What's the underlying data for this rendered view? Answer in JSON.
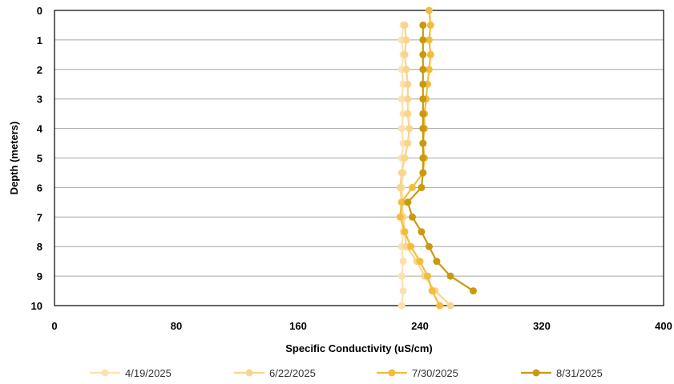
{
  "chart_data": {
    "type": "line",
    "xlabel": "Specific Conductivity (uS/cm)",
    "ylabel": "Depth (meters)",
    "xlim": [
      0,
      400
    ],
    "ylim": [
      0,
      10
    ],
    "y_inverted": true,
    "x_ticks": [
      0,
      80,
      160,
      240,
      320,
      400
    ],
    "y_ticks": [
      0,
      1,
      2,
      3,
      4,
      5,
      6,
      7,
      8,
      9,
      10
    ],
    "grid": "horizontal",
    "legend_position": "bottom",
    "series": [
      {
        "name": "4/19/2025",
        "color": "#fce0b0",
        "x": [
          229,
          228,
          229,
          228,
          229,
          228,
          229,
          228,
          229,
          228,
          229,
          228,
          229,
          228,
          229,
          228,
          229,
          228,
          229,
          228
        ],
        "y": [
          0.5,
          1,
          1.5,
          2,
          2.5,
          3,
          3.5,
          4,
          4.5,
          5,
          5.5,
          6,
          6.5,
          7,
          7.5,
          8,
          8.5,
          9,
          9.5,
          10
        ]
      },
      {
        "name": "6/22/2025",
        "color": "#f8d58a",
        "x": [
          230,
          231,
          230,
          231,
          232,
          232,
          232,
          233,
          232,
          230,
          228,
          227,
          228,
          229,
          230,
          231,
          238,
          243,
          250,
          260
        ],
        "y": [
          0.5,
          1,
          1.5,
          2,
          2.5,
          3,
          3.5,
          4,
          4.5,
          5,
          5.5,
          6,
          6.5,
          7,
          7.5,
          8,
          8.5,
          9,
          9.5,
          10
        ]
      },
      {
        "name": "7/30/2025",
        "color": "#f2bd3c",
        "x": [
          246,
          247,
          246,
          247,
          246,
          245,
          244,
          243,
          243,
          242,
          243,
          242,
          235,
          228,
          227,
          230,
          234,
          240,
          245,
          248,
          253
        ],
        "y": [
          0,
          0.5,
          1,
          1.5,
          2,
          2.5,
          3,
          3.5,
          4,
          4.5,
          5,
          5.5,
          6,
          6.5,
          7,
          7.5,
          8,
          8.5,
          9,
          9.5,
          10
        ]
      },
      {
        "name": "8/31/2025",
        "color": "#c99a0f",
        "x": [
          242,
          242,
          242,
          242,
          242,
          242,
          242,
          242,
          242,
          242,
          242,
          241,
          232,
          235,
          241,
          246,
          251,
          260,
          275
        ],
        "y": [
          0.5,
          1,
          1.5,
          2,
          2.5,
          3,
          3.5,
          4,
          4.5,
          5,
          5.5,
          6,
          6.5,
          7,
          7.5,
          8,
          8.5,
          9,
          9.5
        ]
      }
    ]
  }
}
